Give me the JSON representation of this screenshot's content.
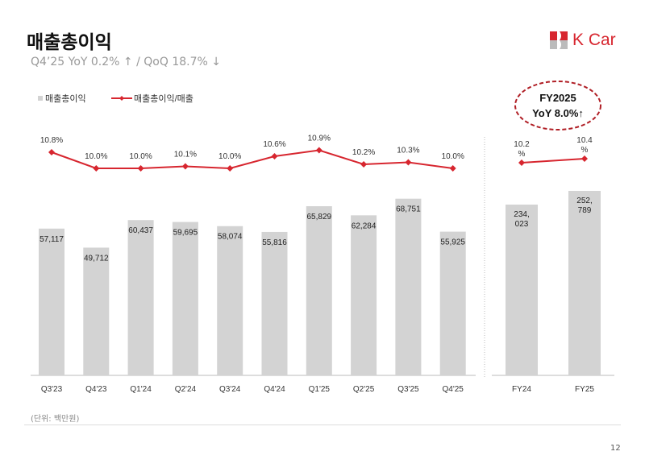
{
  "header": {
    "title": "매출총이익",
    "subtitle": "Q4’25 YoY 0.2% ↑ / QoQ 18.7% ↓",
    "logo_text": "K Car"
  },
  "callout": {
    "line1": "FY2025",
    "line2": "YoY 8.0%↑"
  },
  "footer": {
    "unit": "(단위: 백만원)",
    "page": "12"
  },
  "colors": {
    "bar": "#d3d3d3",
    "line": "#d7262f",
    "brand": "#d7262f"
  },
  "chart_data": [
    {
      "type": "bar+line",
      "legend": [
        "매출총이익",
        "매출총이익/매출"
      ],
      "legend_position": "top-left",
      "categories": [
        "Q3'23",
        "Q4'23",
        "Q1'24",
        "Q2'24",
        "Q3'24",
        "Q4'24",
        "Q1'25",
        "Q2'25",
        "Q3'25",
        "Q4'25"
      ],
      "series": [
        {
          "name": "매출총이익",
          "type": "bar",
          "values": [
            57117,
            49712,
            60437,
            59695,
            58074,
            55816,
            65829,
            62284,
            68751,
            55925
          ],
          "labels": [
            "57,117",
            "49,712",
            "60,437",
            "59,695",
            "58,074",
            "55,816",
            "65,829",
            "62,284",
            "68,751",
            "55,925"
          ]
        },
        {
          "name": "매출총이익/매출",
          "type": "line",
          "values": [
            10.8,
            10.0,
            10.0,
            10.1,
            10.0,
            10.6,
            10.9,
            10.2,
            10.3,
            10.0
          ],
          "labels": [
            "10.8%",
            "10.0%",
            "10.0%",
            "10.1%",
            "10.0%",
            "10.6%",
            "10.9%",
            "10.2%",
            "10.3%",
            "10.0%"
          ]
        }
      ]
    },
    {
      "type": "bar+line",
      "categories": [
        "FY24",
        "FY25"
      ],
      "series": [
        {
          "name": "매출총이익",
          "type": "bar",
          "values": [
            234023,
            252789
          ],
          "labels": [
            [
              "234,",
              "023"
            ],
            [
              "252,",
              "789"
            ]
          ]
        },
        {
          "name": "매출총이익/매출",
          "type": "line",
          "values": [
            10.2,
            10.4
          ],
          "labels": [
            [
              "10.2",
              "%"
            ],
            [
              "10.4",
              "%"
            ]
          ]
        }
      ]
    }
  ]
}
